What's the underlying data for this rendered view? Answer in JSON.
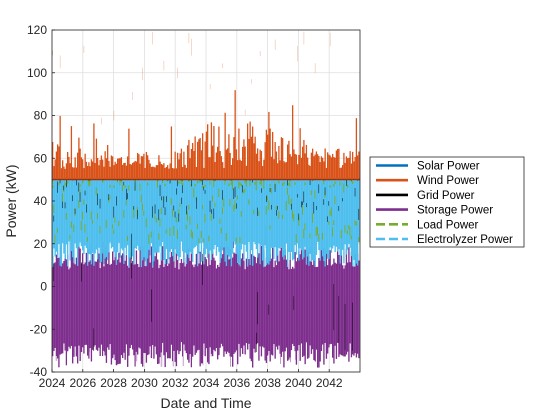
{
  "chart_data": {
    "type": "line",
    "xlabel": "Date and Time",
    "ylabel": "Power (kW)",
    "xlim": [
      2024,
      2044
    ],
    "ylim": [
      -40,
      120
    ],
    "x_ticks": [
      "2024",
      "2026",
      "2028",
      "2030",
      "2032",
      "2034",
      "2036",
      "2038",
      "2040",
      "2042"
    ],
    "y_ticks": [
      -40,
      -20,
      0,
      20,
      40,
      60,
      80,
      100,
      120
    ],
    "grid": true,
    "legend_position": "right",
    "series": [
      {
        "name": "Solar Power",
        "color": "#0072BD",
        "style": "solid",
        "baseline": 50,
        "typical_peak": [
          50,
          50
        ]
      },
      {
        "name": "Wind Power",
        "color": "#D95319",
        "style": "solid",
        "baseline": 50,
        "typical_peak": [
          62,
          110
        ],
        "peak_profile": [
          [
            2024,
            68
          ],
          [
            2028,
            62
          ],
          [
            2032,
            64
          ],
          [
            2035,
            82
          ],
          [
            2037,
            78
          ],
          [
            2040,
            70
          ],
          [
            2044,
            62
          ]
        ]
      },
      {
        "name": "Grid Power",
        "color": "#000000",
        "style": "solid",
        "typical_range": [
          -40,
          50
        ]
      },
      {
        "name": "Storage Power",
        "color": "#7E2F8E",
        "style": "solid",
        "typical_range": [
          -38,
          20
        ]
      },
      {
        "name": "Load Power",
        "color": "#77AC30",
        "style": "dashed",
        "typical_range": [
          20,
          50
        ]
      },
      {
        "name": "Electrolyzer Power",
        "color": "#4DBEEE",
        "style": "dashed",
        "typical_range": [
          0,
          50
        ]
      }
    ]
  }
}
